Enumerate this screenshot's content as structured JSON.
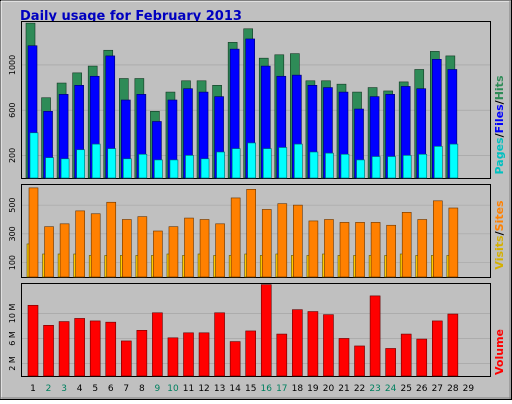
{
  "title": "Daily usage for February 2013",
  "colors": {
    "title": "#0000c0",
    "frame_bg": "#c0c0c0",
    "hits": "#2e8b57",
    "files": "#0000ff",
    "pages": "#00ffff",
    "visits": "#ffcc00",
    "sites": "#ff8000",
    "volume": "#ff0000",
    "weekend_day": "#00805f",
    "weekday": "#000000"
  },
  "legends": {
    "top": [
      {
        "text": "Pages",
        "color": "#00c0c0"
      },
      {
        "text": "/",
        "color": "#000000"
      },
      {
        "text": "Files",
        "color": "#0000ff"
      },
      {
        "text": "/",
        "color": "#000000"
      },
      {
        "text": "Hits",
        "color": "#2e8b57"
      }
    ],
    "middle": [
      {
        "text": "Visits",
        "color": "#d4b000"
      },
      {
        "text": "/",
        "color": "#000000"
      },
      {
        "text": "Sites",
        "color": "#ff8000"
      }
    ],
    "bottom": [
      {
        "text": "Volume",
        "color": "#ff0000"
      }
    ]
  },
  "chart_data": [
    {
      "type": "bar",
      "panel": "top",
      "categories": [
        "1",
        "2",
        "3",
        "4",
        "5",
        "6",
        "7",
        "8",
        "9",
        "10",
        "11",
        "12",
        "13",
        "14",
        "15",
        "16",
        "17",
        "18",
        "19",
        "20",
        "21",
        "22",
        "23",
        "24",
        "25",
        "26",
        "27",
        "28",
        "29"
      ],
      "yticks": [
        200,
        600,
        1000
      ],
      "ylim": [
        0,
        1380
      ],
      "series": [
        {
          "name": "Hits",
          "values": [
            1370,
            710,
            840,
            930,
            990,
            1130,
            880,
            880,
            590,
            760,
            860,
            860,
            820,
            1200,
            1320,
            1060,
            1090,
            1100,
            860,
            860,
            830,
            760,
            800,
            770,
            850,
            960,
            1120,
            1080,
            null
          ]
        },
        {
          "name": "Files",
          "values": [
            1170,
            590,
            740,
            820,
            900,
            1080,
            690,
            740,
            500,
            690,
            790,
            760,
            720,
            1140,
            1230,
            990,
            900,
            910,
            820,
            800,
            760,
            610,
            720,
            740,
            810,
            790,
            1050,
            960,
            null
          ]
        },
        {
          "name": "Pages",
          "values": [
            400,
            180,
            170,
            250,
            300,
            260,
            170,
            210,
            160,
            160,
            200,
            170,
            230,
            260,
            310,
            260,
            270,
            300,
            230,
            220,
            210,
            160,
            190,
            190,
            200,
            210,
            280,
            300,
            null
          ]
        }
      ]
    },
    {
      "type": "bar",
      "panel": "middle",
      "categories": [
        "1",
        "2",
        "3",
        "4",
        "5",
        "6",
        "7",
        "8",
        "9",
        "10",
        "11",
        "12",
        "13",
        "14",
        "15",
        "16",
        "17",
        "18",
        "19",
        "20",
        "21",
        "22",
        "23",
        "24",
        "25",
        "26",
        "27",
        "28",
        "29"
      ],
      "yticks": [
        100,
        300,
        500
      ],
      "ylim": [
        0,
        640
      ],
      "series": [
        {
          "name": "Visits",
          "values": [
            230,
            160,
            160,
            160,
            150,
            150,
            150,
            150,
            150,
            160,
            150,
            160,
            150,
            150,
            160,
            150,
            160,
            150,
            150,
            160,
            150,
            150,
            150,
            150,
            160,
            150,
            150,
            150,
            null
          ]
        },
        {
          "name": "Sites",
          "values": [
            620,
            350,
            370,
            460,
            440,
            520,
            400,
            420,
            320,
            350,
            410,
            400,
            370,
            550,
            610,
            470,
            510,
            500,
            390,
            400,
            380,
            380,
            380,
            360,
            450,
            400,
            530,
            480,
            null
          ]
        }
      ]
    },
    {
      "type": "bar",
      "panel": "bottom",
      "categories": [
        "1",
        "2",
        "3",
        "4",
        "5",
        "6",
        "7",
        "8",
        "9",
        "10",
        "11",
        "12",
        "13",
        "14",
        "15",
        "16",
        "17",
        "18",
        "19",
        "20",
        "21",
        "22",
        "23",
        "24",
        "25",
        "26",
        "27",
        "28",
        "29"
      ],
      "yticks": [
        2,
        6,
        10
      ],
      "ytick_labels": [
        "2 M",
        "6 M",
        "10 M"
      ],
      "ylim": [
        0,
        14.7
      ],
      "series": [
        {
          "name": "Volume",
          "values": [
            11.3,
            8.1,
            8.7,
            9.2,
            8.8,
            8.6,
            5.6,
            7.3,
            10.1,
            6.1,
            6.9,
            6.9,
            10.1,
            5.5,
            7.2,
            14.6,
            6.7,
            10.6,
            10.3,
            9.8,
            6.0,
            4.8,
            12.8,
            4.4,
            6.7,
            5.9,
            8.8,
            9.9,
            null
          ]
        }
      ]
    }
  ],
  "days": [
    {
      "label": "1",
      "weekend": false
    },
    {
      "label": "2",
      "weekend": true
    },
    {
      "label": "3",
      "weekend": true
    },
    {
      "label": "4",
      "weekend": false
    },
    {
      "label": "5",
      "weekend": false
    },
    {
      "label": "6",
      "weekend": false
    },
    {
      "label": "7",
      "weekend": false
    },
    {
      "label": "8",
      "weekend": false
    },
    {
      "label": "9",
      "weekend": true
    },
    {
      "label": "10",
      "weekend": true
    },
    {
      "label": "11",
      "weekend": false
    },
    {
      "label": "12",
      "weekend": false
    },
    {
      "label": "13",
      "weekend": false
    },
    {
      "label": "14",
      "weekend": false
    },
    {
      "label": "15",
      "weekend": false
    },
    {
      "label": "16",
      "weekend": true
    },
    {
      "label": "17",
      "weekend": true
    },
    {
      "label": "18",
      "weekend": false
    },
    {
      "label": "19",
      "weekend": false
    },
    {
      "label": "20",
      "weekend": false
    },
    {
      "label": "21",
      "weekend": false
    },
    {
      "label": "22",
      "weekend": false
    },
    {
      "label": "23",
      "weekend": true
    },
    {
      "label": "24",
      "weekend": true
    },
    {
      "label": "25",
      "weekend": false
    },
    {
      "label": "26",
      "weekend": false
    },
    {
      "label": "27",
      "weekend": false
    },
    {
      "label": "28",
      "weekend": false
    },
    {
      "label": "29",
      "weekend": false
    }
  ]
}
